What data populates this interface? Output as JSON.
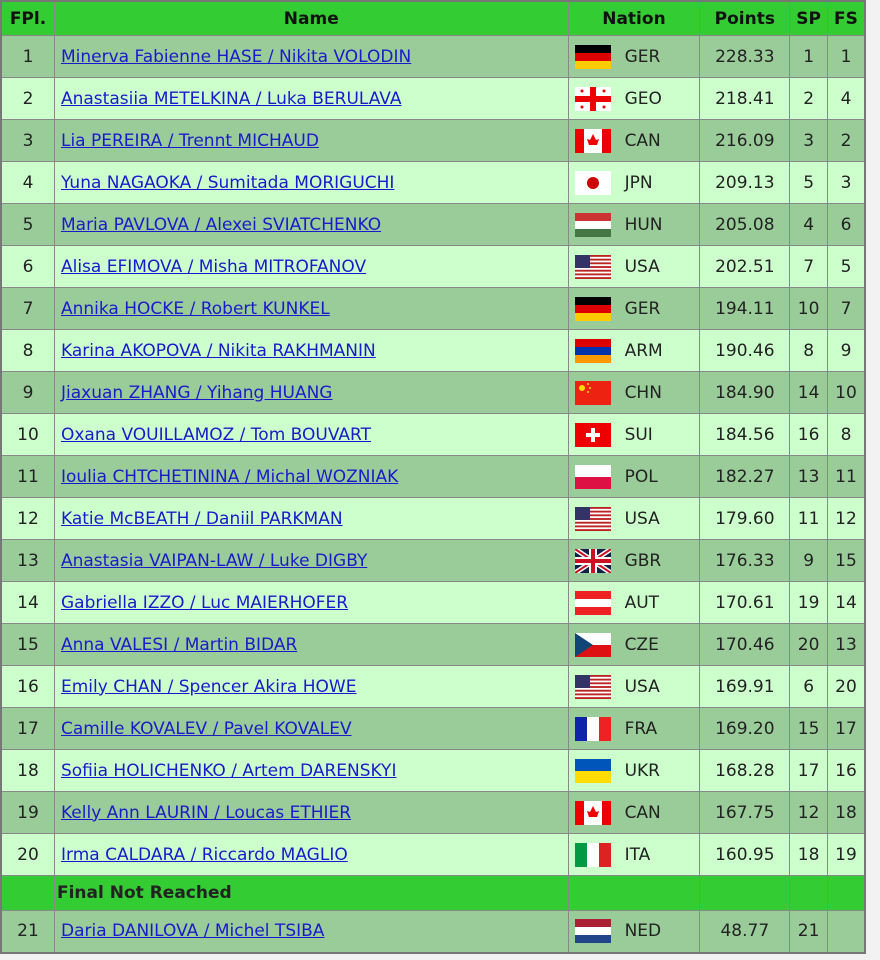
{
  "header": {
    "fpl": "FPl.",
    "name": "Name",
    "nation": "Nation",
    "points": "Points",
    "sp": "SP",
    "fs": "FS"
  },
  "colors": {
    "header": "#33cc33",
    "row_odd": "#99cc99",
    "row_even": "#ccffcc",
    "link": "#1a1acc"
  },
  "rows": [
    {
      "fpl": "1",
      "name": "Minerva Fabienne HASE / Nikita VOLODIN",
      "nation": "GER",
      "points": "228.33",
      "sp": "1",
      "fs": "1"
    },
    {
      "fpl": "2",
      "name": "Anastasiia METELKINA / Luka BERULAVA",
      "nation": "GEO",
      "points": "218.41",
      "sp": "2",
      "fs": "4"
    },
    {
      "fpl": "3",
      "name": "Lia PEREIRA / Trennt MICHAUD",
      "nation": "CAN",
      "points": "216.09",
      "sp": "3",
      "fs": "2"
    },
    {
      "fpl": "4",
      "name": "Yuna NAGAOKA / Sumitada MORIGUCHI",
      "nation": "JPN",
      "points": "209.13",
      "sp": "5",
      "fs": "3"
    },
    {
      "fpl": "5",
      "name": "Maria PAVLOVA / Alexei SVIATCHENKO",
      "nation": "HUN",
      "points": "205.08",
      "sp": "4",
      "fs": "6"
    },
    {
      "fpl": "6",
      "name": "Alisa EFIMOVA / Misha MITROFANOV",
      "nation": "USA",
      "points": "202.51",
      "sp": "7",
      "fs": "5"
    },
    {
      "fpl": "7",
      "name": "Annika HOCKE / Robert KUNKEL",
      "nation": "GER",
      "points": "194.11",
      "sp": "10",
      "fs": "7"
    },
    {
      "fpl": "8",
      "name": "Karina AKOPOVA / Nikita RAKHMANIN",
      "nation": "ARM",
      "points": "190.46",
      "sp": "8",
      "fs": "9"
    },
    {
      "fpl": "9",
      "name": "Jiaxuan ZHANG / Yihang HUANG",
      "nation": "CHN",
      "points": "184.90",
      "sp": "14",
      "fs": "10"
    },
    {
      "fpl": "10",
      "name": "Oxana VOUILLAMOZ / Tom BOUVART",
      "nation": "SUI",
      "points": "184.56",
      "sp": "16",
      "fs": "8"
    },
    {
      "fpl": "11",
      "name": "Ioulia CHTCHETININA / Michal WOZNIAK",
      "nation": "POL",
      "points": "182.27",
      "sp": "13",
      "fs": "11"
    },
    {
      "fpl": "12",
      "name": "Katie McBEATH / Daniil PARKMAN",
      "nation": "USA",
      "points": "179.60",
      "sp": "11",
      "fs": "12"
    },
    {
      "fpl": "13",
      "name": "Anastasia VAIPAN-LAW / Luke DIGBY",
      "nation": "GBR",
      "points": "176.33",
      "sp": "9",
      "fs": "15"
    },
    {
      "fpl": "14",
      "name": "Gabriella IZZO / Luc MAIERHOFER",
      "nation": "AUT",
      "points": "170.61",
      "sp": "19",
      "fs": "14"
    },
    {
      "fpl": "15",
      "name": "Anna VALESI / Martin BIDAR",
      "nation": "CZE",
      "points": "170.46",
      "sp": "20",
      "fs": "13"
    },
    {
      "fpl": "16",
      "name": "Emily CHAN / Spencer Akira HOWE",
      "nation": "USA",
      "points": "169.91",
      "sp": "6",
      "fs": "20"
    },
    {
      "fpl": "17",
      "name": "Camille KOVALEV / Pavel KOVALEV",
      "nation": "FRA",
      "points": "169.20",
      "sp": "15",
      "fs": "17"
    },
    {
      "fpl": "18",
      "name": "Sofiia HOLICHENKO / Artem DARENSKYI",
      "nation": "UKR",
      "points": "168.28",
      "sp": "17",
      "fs": "16"
    },
    {
      "fpl": "19",
      "name": "Kelly Ann LAURIN / Loucas ETHIER",
      "nation": "CAN",
      "points": "167.75",
      "sp": "12",
      "fs": "18"
    },
    {
      "fpl": "20",
      "name": "Irma CALDARA / Riccardo MAGLIO",
      "nation": "ITA",
      "points": "160.95",
      "sp": "18",
      "fs": "19"
    }
  ],
  "separator": "Final Not Reached",
  "rows_not_reached": [
    {
      "fpl": "21",
      "name": "Daria DANILOVA / Michel TSIBA",
      "nation": "NED",
      "points": "48.77",
      "sp": "21",
      "fs": ""
    }
  ]
}
